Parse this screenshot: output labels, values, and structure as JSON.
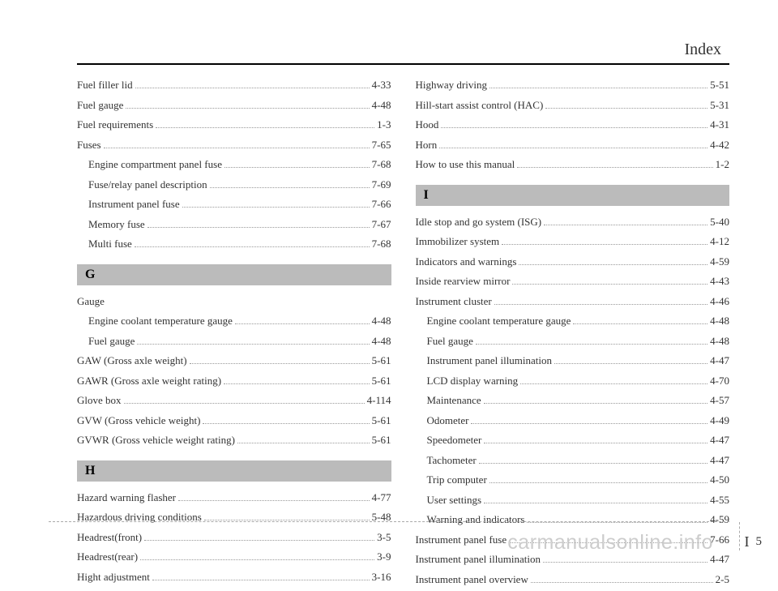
{
  "header": "Index",
  "footer": {
    "letter": "I",
    "page": "5"
  },
  "watermark": "carmanualsonline.info",
  "left": [
    {
      "label": "Fuel filler lid",
      "page": "4-33",
      "sub": false
    },
    {
      "label": "Fuel gauge",
      "page": "4-48",
      "sub": false
    },
    {
      "label": "Fuel requirements",
      "page": "1-3",
      "sub": false
    },
    {
      "label": "Fuses",
      "page": "7-65",
      "sub": false
    },
    {
      "label": "Engine compartment panel fuse",
      "page": "7-68",
      "sub": true
    },
    {
      "label": "Fuse/relay panel description",
      "page": "7-69",
      "sub": true
    },
    {
      "label": "Instrument panel fuse",
      "page": "7-66",
      "sub": true
    },
    {
      "label": "Memory fuse",
      "page": "7-67",
      "sub": true
    },
    {
      "label": "Multi fuse",
      "page": "7-68",
      "sub": true
    },
    {
      "type": "section",
      "letter": "G"
    },
    {
      "label": "Gauge",
      "page": "",
      "sub": false,
      "nodots": true
    },
    {
      "label": "Engine coolant temperature gauge",
      "page": "4-48",
      "sub": true
    },
    {
      "label": "Fuel gauge",
      "page": "4-48",
      "sub": true
    },
    {
      "label": "GAW (Gross axle weight)",
      "page": "5-61",
      "sub": false
    },
    {
      "label": "GAWR (Gross axle weight rating)",
      "page": "5-61",
      "sub": false
    },
    {
      "label": "Glove box",
      "page": "4-114",
      "sub": false
    },
    {
      "label": "GVW (Gross vehicle weight)",
      "page": "5-61",
      "sub": false
    },
    {
      "label": "GVWR (Gross vehicle weight rating)",
      "page": "5-61",
      "sub": false
    },
    {
      "type": "section",
      "letter": "H"
    },
    {
      "label": "Hazard warning flasher",
      "page": "4-77",
      "sub": false
    },
    {
      "label": "Hazardous driving conditions",
      "page": "5-48",
      "sub": false
    },
    {
      "label": "Headrest(front)",
      "page": "3-5",
      "sub": false
    },
    {
      "label": "Headrest(rear)",
      "page": "3-9",
      "sub": false
    },
    {
      "label": "Hight adjustment",
      "page": "3-16",
      "sub": false
    }
  ],
  "right": [
    {
      "label": "Highway driving",
      "page": "5-51",
      "sub": false
    },
    {
      "label": "Hill-start assist control (HAC)",
      "page": "5-31",
      "sub": false
    },
    {
      "label": "Hood",
      "page": "4-31",
      "sub": false
    },
    {
      "label": "Horn",
      "page": "4-42",
      "sub": false
    },
    {
      "label": "How to use this manual",
      "page": "1-2",
      "sub": false
    },
    {
      "type": "section",
      "letter": "I"
    },
    {
      "label": "Idle stop and go system (ISG)",
      "page": "5-40",
      "sub": false
    },
    {
      "label": "Immobilizer system",
      "page": "4-12",
      "sub": false
    },
    {
      "label": "Indicators and warnings",
      "page": "4-59",
      "sub": false
    },
    {
      "label": "Inside rearview mirror",
      "page": "4-43",
      "sub": false
    },
    {
      "label": "Instrument cluster",
      "page": "4-46",
      "sub": false
    },
    {
      "label": "Engine coolant temperature gauge",
      "page": "4-48",
      "sub": true
    },
    {
      "label": "Fuel gauge",
      "page": "4-48",
      "sub": true
    },
    {
      "label": "Instrument panel illumination",
      "page": "4-47",
      "sub": true
    },
    {
      "label": "LCD display warning",
      "page": "4-70",
      "sub": true
    },
    {
      "label": "Maintenance",
      "page": "4-57",
      "sub": true
    },
    {
      "label": "Odometer",
      "page": "4-49",
      "sub": true
    },
    {
      "label": "Speedometer",
      "page": "4-47",
      "sub": true
    },
    {
      "label": "Tachometer",
      "page": "4-47",
      "sub": true
    },
    {
      "label": "Trip computer",
      "page": "4-50",
      "sub": true
    },
    {
      "label": "User settings",
      "page": "4-55",
      "sub": true
    },
    {
      "label": "Warning and indicators",
      "page": "4-59",
      "sub": true
    },
    {
      "label": "Instrument panel fuse",
      "page": "7-66",
      "sub": false
    },
    {
      "label": "Instrument panel illumination",
      "page": "4-47",
      "sub": false
    },
    {
      "label": "Instrument panel overview",
      "page": "2-5",
      "sub": false
    }
  ]
}
